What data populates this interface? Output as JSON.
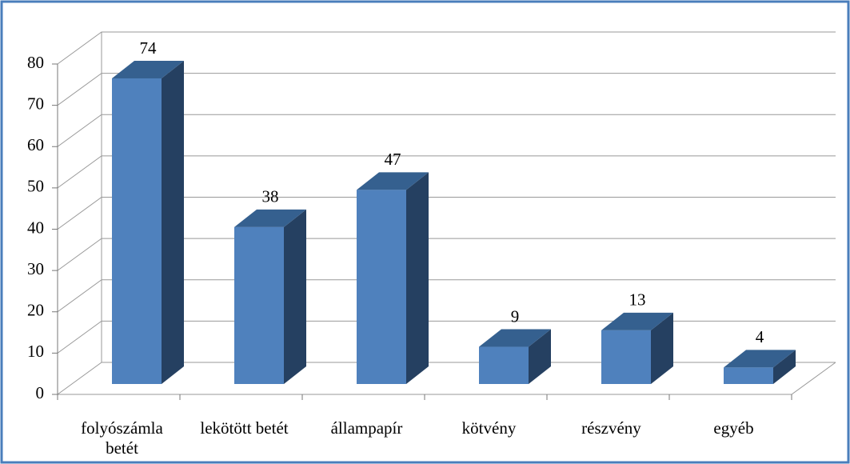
{
  "chart_data": {
    "type": "bar3d",
    "categories": [
      "folyószámla betét",
      "lekötött betét",
      "állampapír",
      "kötvény",
      "részvény",
      "egyéb"
    ],
    "values": [
      74,
      38,
      47,
      9,
      13,
      4
    ],
    "color": "#4f81bd",
    "ylim": [
      0,
      80
    ],
    "yticks": [
      0,
      10,
      20,
      30,
      40,
      50,
      60,
      70,
      80
    ],
    "grid": true
  }
}
